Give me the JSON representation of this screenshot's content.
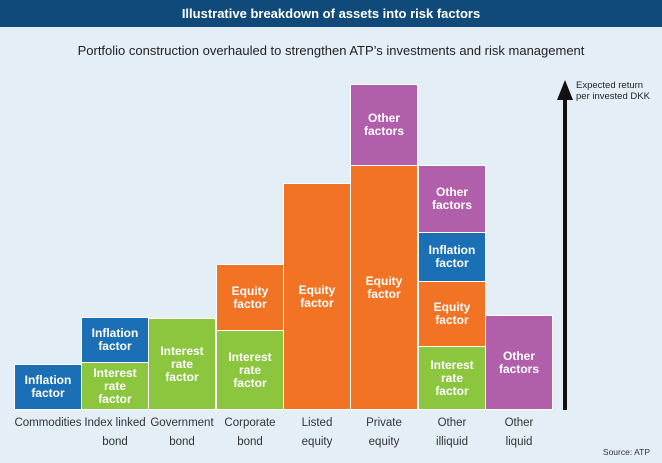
{
  "header": {
    "title": "Illustrative breakdown of assets into risk factors",
    "subtitle": "Portfolio construction overhauled to strengthen ATP’s investments and risk management"
  },
  "axis": {
    "label": "Expected return\nper invested DKK"
  },
  "colors": {
    "inflation": "#1a6fb5",
    "interest": "#8cc63f",
    "equity": "#f37324",
    "other": "#b25fab"
  },
  "columns": [
    {
      "label": "Commodities",
      "blocks": [
        {
          "text": "Inflation\nfactor"
        }
      ]
    },
    {
      "label": "Index linked\nbond",
      "blocks": [
        {
          "text": "Interest\nrate\nfactor"
        },
        {
          "text": "Inflation\nfactor"
        }
      ]
    },
    {
      "label": "Government\nbond",
      "blocks": [
        {
          "text": "Interest\nrate\nfactor"
        }
      ]
    },
    {
      "label": "Corporate\nbond",
      "blocks": [
        {
          "text": "Interest\nrate\nfactor"
        },
        {
          "text": "Equity\nfactor"
        }
      ]
    },
    {
      "label": "Listed\nequity",
      "blocks": [
        {
          "text": "Equity\nfactor"
        }
      ]
    },
    {
      "label": "Private\nequity",
      "blocks": [
        {
          "text": "Equity\nfactor"
        },
        {
          "text": "Other\nfactors"
        }
      ]
    },
    {
      "label": "Other\nilliquid",
      "blocks": [
        {
          "text": "Interest\nrate\nfactor"
        },
        {
          "text": "Equity\nfactor"
        },
        {
          "text": "Inflation\nfactor"
        },
        {
          "text": "Other\nfactors"
        }
      ]
    },
    {
      "label": "Other\nliquid",
      "blocks": [
        {
          "text": "Other\nfactors"
        }
      ]
    }
  ],
  "footer": {
    "source": "Source: ATP"
  }
}
